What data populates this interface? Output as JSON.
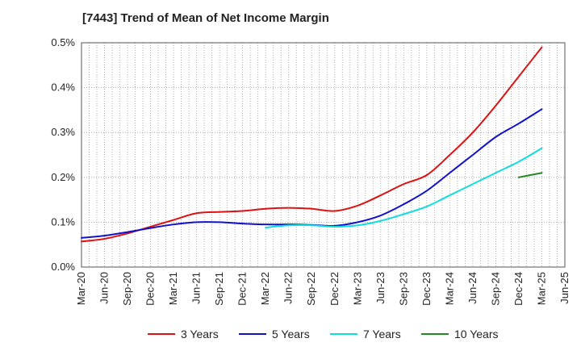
{
  "chart_data": {
    "type": "line",
    "title": "[7443]  Trend of Mean of Net Income Margin",
    "xlabel": "",
    "ylabel": "",
    "x": [
      "Mar-20",
      "Jun-20",
      "Sep-20",
      "Dec-20",
      "Mar-21",
      "Jun-21",
      "Sep-21",
      "Dec-21",
      "Mar-22",
      "Jun-22",
      "Sep-22",
      "Dec-22",
      "Mar-23",
      "Jun-23",
      "Sep-23",
      "Dec-23",
      "Mar-24",
      "Jun-24",
      "Sep-24",
      "Dec-24",
      "Mar-25",
      "Jun-25"
    ],
    "x_tick_labels": [
      "Mar-20",
      "Jun-20",
      "Sep-20",
      "Dec-20",
      "Mar-21",
      "Jun-21",
      "Sep-21",
      "Dec-21",
      "Mar-22",
      "Jun-22",
      "Sep-22",
      "Dec-22",
      "Mar-23",
      "Jun-23",
      "Sep-23",
      "Dec-23",
      "Mar-24",
      "Jun-24",
      "Sep-24",
      "Dec-24",
      "Mar-25",
      "Jun-25"
    ],
    "y_tick_labels": [
      "0.0%",
      "0.1%",
      "0.2%",
      "0.3%",
      "0.4%",
      "0.5%"
    ],
    "ylim": [
      0,
      0.5
    ],
    "y_unit": "%",
    "grid": true,
    "legend_position": "bottom",
    "series": [
      {
        "name": "3 Years",
        "color": "#dd1111",
        "values": [
          0.057,
          0.063,
          0.075,
          0.09,
          0.105,
          0.12,
          0.123,
          0.125,
          0.13,
          0.132,
          0.13,
          0.125,
          0.137,
          0.16,
          0.185,
          0.205,
          0.25,
          0.3,
          0.36,
          0.425,
          0.49,
          null
        ]
      },
      {
        "name": "5 Years",
        "color": "#1111cc",
        "values": [
          0.065,
          0.07,
          0.078,
          0.087,
          0.095,
          0.1,
          0.1,
          0.097,
          0.095,
          0.095,
          0.094,
          0.092,
          0.1,
          0.115,
          0.14,
          0.17,
          0.21,
          0.25,
          0.29,
          0.32,
          0.352,
          null
        ]
      },
      {
        "name": "7 Years",
        "color": "#11dddd",
        "values": [
          null,
          null,
          null,
          null,
          null,
          null,
          null,
          null,
          0.088,
          0.093,
          0.093,
          0.09,
          0.093,
          0.103,
          0.118,
          0.135,
          0.16,
          0.185,
          0.21,
          0.235,
          0.265,
          null
        ]
      },
      {
        "name": "10 Years",
        "color": "#228822",
        "values": [
          null,
          null,
          null,
          null,
          null,
          null,
          null,
          null,
          null,
          null,
          null,
          null,
          null,
          null,
          null,
          null,
          null,
          null,
          null,
          0.2,
          0.21,
          null
        ]
      }
    ]
  }
}
